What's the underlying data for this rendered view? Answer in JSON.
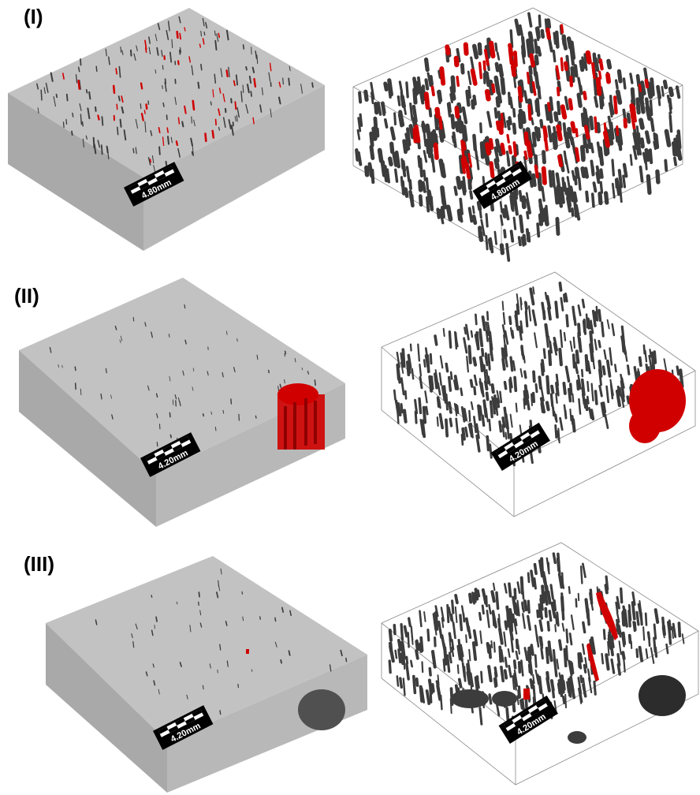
{
  "rows": [
    {
      "label": "(I)",
      "scale_text": "4.80mm"
    },
    {
      "label": "(II)",
      "scale_text": "4.20mm"
    },
    {
      "label": "(III)",
      "scale_text": "4.20mm"
    }
  ],
  "colors": {
    "block_top": "#c2c2c2",
    "block_left": "#a9a9a9",
    "block_right": "#b8b8b8",
    "pore": "#3c3c3c",
    "highlight": "#d00000",
    "frame": "#8a8a8a"
  }
}
